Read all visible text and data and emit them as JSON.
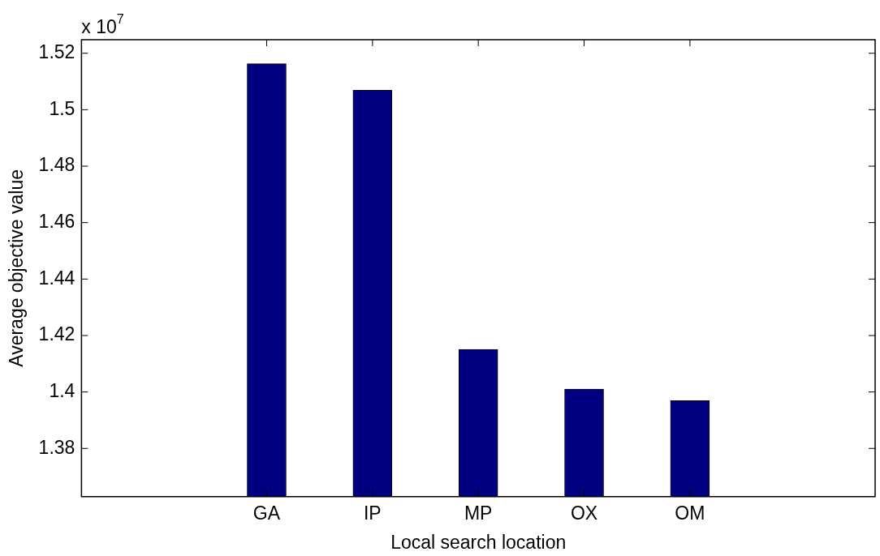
{
  "chart_data": {
    "type": "bar",
    "xlabel": "Local search location",
    "ylabel": "Average objective value",
    "categories": [
      "GA",
      "IP",
      "MP",
      "OX",
      "OM"
    ],
    "values": [
      1.5163,
      1.5069,
      1.4151,
      1.401,
      1.3969
    ],
    "color": "#000080",
    "ylim": [
      1.3629,
      1.5248
    ],
    "yticks": [
      1.38,
      {
        "value": 1.4,
        "label": "1.4"
      },
      1.42,
      1.44,
      1.46,
      1.48,
      {
        "value": 1.5,
        "label": "1.5"
      },
      1.52
    ],
    "grid": false,
    "legend": false,
    "annotations": [
      "x 10$^{7}$"
    ]
  }
}
